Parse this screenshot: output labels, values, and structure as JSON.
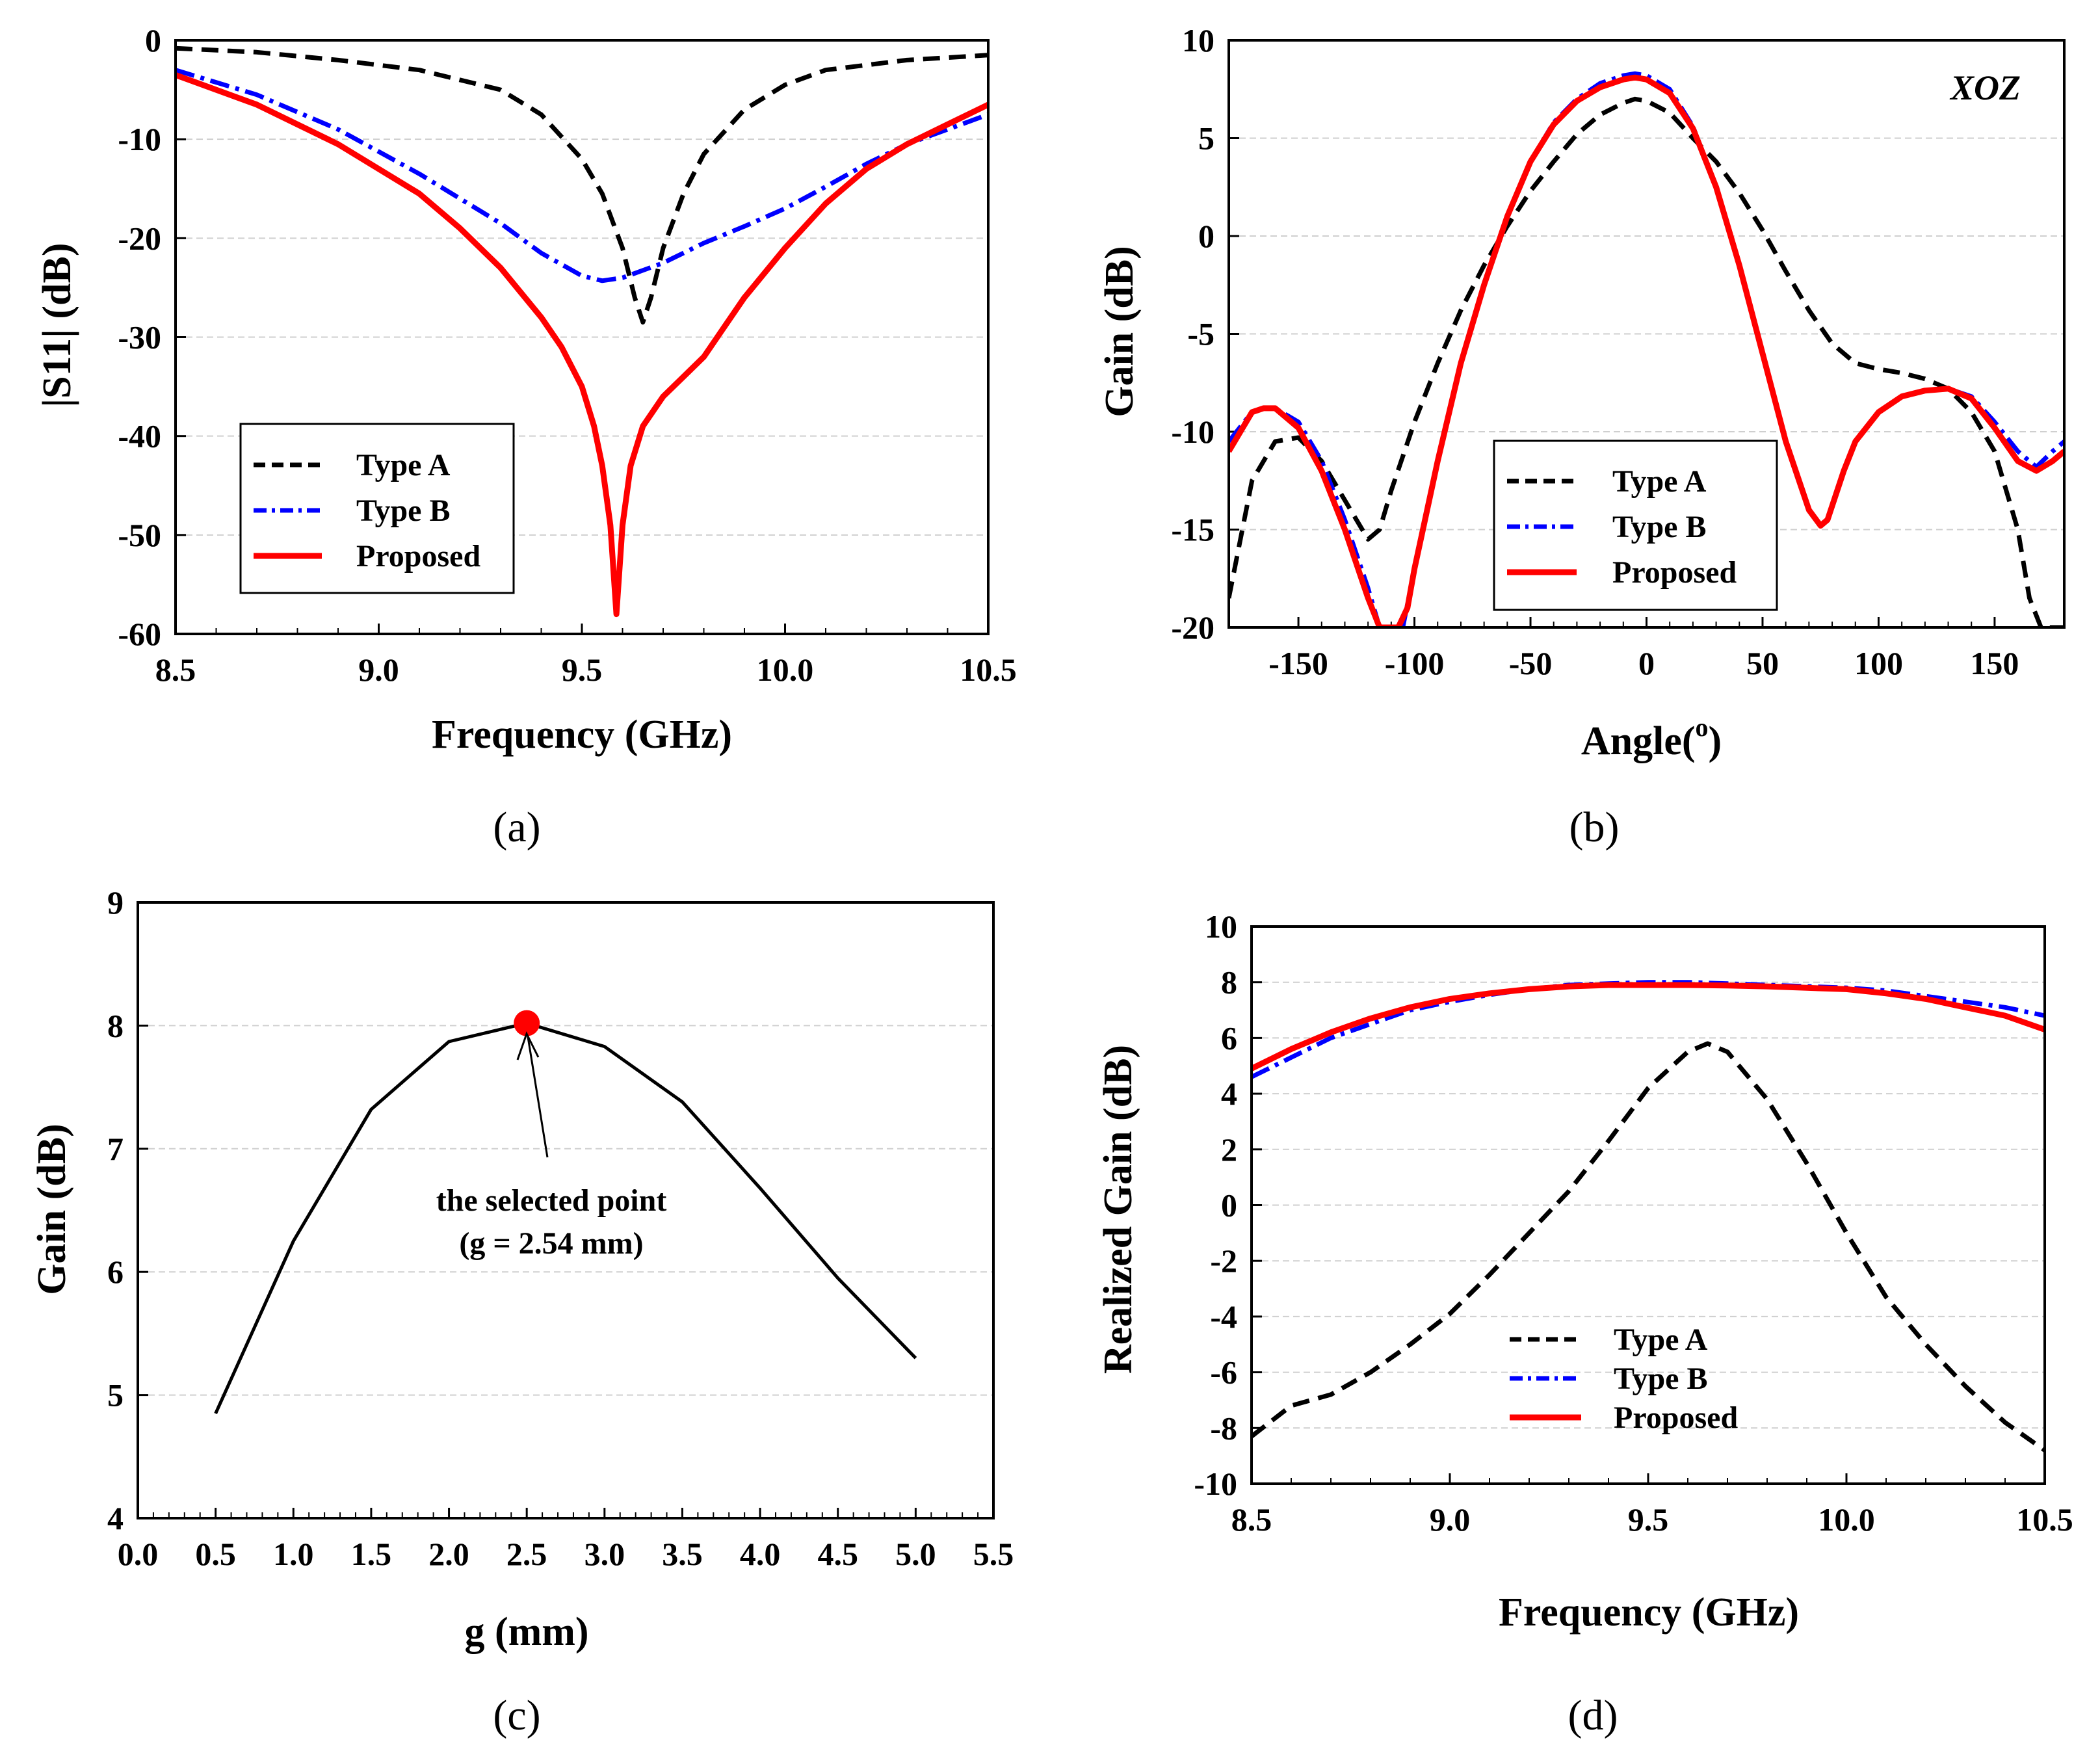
{
  "chart_data": [
    {
      "type": "line",
      "panel_label": "(a)",
      "xlabel": "Frequency (GHz)",
      "ylabel": "|S11| (dB)",
      "xlim": [
        8.5,
        10.5
      ],
      "ylim": [
        -60,
        0
      ],
      "xticks": [
        "8.5",
        "9.0",
        "9.5",
        "10.0",
        "10.5"
      ],
      "yticks": [
        "0",
        "-10",
        "-20",
        "-30",
        "-40",
        "-50",
        "-60"
      ],
      "grid": true,
      "legend": "bottom-left",
      "series": [
        {
          "name": "Type A",
          "color": "#000000",
          "style": "dashed",
          "x": [
            8.5,
            8.7,
            8.9,
            9.1,
            9.3,
            9.4,
            9.5,
            9.55,
            9.6,
            9.63,
            9.65,
            9.67,
            9.7,
            9.75,
            9.8,
            9.9,
            10.0,
            10.1,
            10.3,
            10.5
          ],
          "y": [
            -0.8,
            -1.2,
            -2.0,
            -3.0,
            -5.0,
            -7.5,
            -12.0,
            -15.5,
            -21.0,
            -26.0,
            -28.5,
            -26.0,
            -21.0,
            -15.5,
            -11.5,
            -7.0,
            -4.5,
            -3.0,
            -2.0,
            -1.5
          ]
        },
        {
          "name": "Type B",
          "color": "#0000ff",
          "style": "dashdot",
          "x": [
            8.5,
            8.7,
            8.9,
            9.1,
            9.3,
            9.4,
            9.5,
            9.55,
            9.6,
            9.7,
            9.8,
            9.9,
            10.0,
            10.1,
            10.2,
            10.3,
            10.4,
            10.5
          ],
          "y": [
            -3.0,
            -5.5,
            -9.0,
            -13.5,
            -18.5,
            -21.5,
            -23.8,
            -24.3,
            -24.0,
            -22.5,
            -20.5,
            -18.8,
            -17.0,
            -14.8,
            -12.5,
            -10.5,
            -9.0,
            -7.5
          ]
        },
        {
          "name": "Proposed",
          "color": "#ff0000",
          "style": "solid",
          "x": [
            8.5,
            8.7,
            8.9,
            9.1,
            9.2,
            9.3,
            9.4,
            9.45,
            9.5,
            9.53,
            9.55,
            9.57,
            9.585,
            9.6,
            9.62,
            9.65,
            9.7,
            9.75,
            9.8,
            9.85,
            9.9,
            10.0,
            10.1,
            10.2,
            10.3,
            10.4,
            10.5
          ],
          "y": [
            -3.5,
            -6.5,
            -10.5,
            -15.5,
            -19.0,
            -23.0,
            -28.0,
            -31.0,
            -35.0,
            -39.0,
            -43.0,
            -49.0,
            -58.0,
            -49.0,
            -43.0,
            -39.0,
            -36.0,
            -34.0,
            -32.0,
            -29.0,
            -26.0,
            -21.0,
            -16.5,
            -13.0,
            -10.5,
            -8.5,
            -6.5
          ]
        }
      ]
    },
    {
      "type": "line",
      "panel_label": "(b)",
      "annotation": "XOZ",
      "xlabel": "Angle(°)",
      "xlabel_main": "Angle(",
      "xlabel_sup": "o",
      "xlabel_close": ")",
      "ylabel": "Gain (dB)",
      "xlim": [
        -180,
        180
      ],
      "ylim": [
        -20,
        10
      ],
      "xticks": [
        -150,
        -100,
        -50,
        0,
        50,
        100,
        150
      ],
      "xtick_labels": [
        "-150",
        "-100",
        "-50",
        "0",
        "50",
        "100",
        "150"
      ],
      "yticks": [
        "10",
        "5",
        "0",
        "-5",
        "-10",
        "-15",
        "-20"
      ],
      "grid": true,
      "legend": "center-right",
      "series": [
        {
          "name": "Type A",
          "color": "#000000",
          "style": "dashed",
          "x": [
            -180,
            -170,
            -160,
            -150,
            -140,
            -130,
            -120,
            -115,
            -110,
            -100,
            -90,
            -80,
            -70,
            -60,
            -50,
            -40,
            -30,
            -20,
            -10,
            -5,
            0,
            10,
            20,
            30,
            40,
            50,
            60,
            70,
            80,
            90,
            100,
            110,
            120,
            130,
            140,
            150,
            160,
            165,
            170,
            175,
            180
          ],
          "y": [
            -18.5,
            -12.5,
            -10.5,
            -10.3,
            -11.5,
            -13.5,
            -15.5,
            -15.0,
            -13.0,
            -9.5,
            -6.5,
            -3.8,
            -1.5,
            0.5,
            2.3,
            3.8,
            5.2,
            6.2,
            6.8,
            7.0,
            6.9,
            6.3,
            5.0,
            3.8,
            2.2,
            0.3,
            -1.8,
            -3.8,
            -5.5,
            -6.5,
            -6.8,
            -7.0,
            -7.3,
            -7.8,
            -9.0,
            -11.0,
            -15.0,
            -18.5,
            -20.0,
            -20.0,
            -20.0
          ]
        },
        {
          "name": "Type B",
          "color": "#0000ff",
          "style": "dashdot",
          "x": [
            -180,
            -170,
            -165,
            -160,
            -150,
            -140,
            -130,
            -120,
            -115,
            -110,
            -105,
            -100,
            -90,
            -80,
            -70,
            -60,
            -50,
            -40,
            -30,
            -20,
            -10,
            -5,
            0,
            10,
            20,
            30,
            40,
            50,
            60,
            70,
            75,
            78,
            85,
            90,
            100,
            110,
            120,
            130,
            140,
            150,
            160,
            168,
            175,
            180
          ],
          "y": [
            -10.5,
            -9.0,
            -8.8,
            -8.8,
            -9.5,
            -11.5,
            -14.5,
            -18.0,
            -20.0,
            -20.0,
            -20.0,
            -17.0,
            -11.5,
            -6.5,
            -2.5,
            1.0,
            3.8,
            5.8,
            7.0,
            7.8,
            8.2,
            8.3,
            8.2,
            7.5,
            5.6,
            2.5,
            -1.5,
            -6.0,
            -10.5,
            -14.0,
            -14.8,
            -14.5,
            -12.0,
            -10.5,
            -9.0,
            -8.2,
            -7.9,
            -7.8,
            -8.2,
            -9.5,
            -11.0,
            -11.8,
            -11.0,
            -10.5
          ]
        },
        {
          "name": "Proposed",
          "color": "#ff0000",
          "style": "solid",
          "x": [
            -180,
            -170,
            -165,
            -160,
            -150,
            -140,
            -130,
            -120,
            -115,
            -110,
            -107,
            -103,
            -100,
            -90,
            -80,
            -70,
            -60,
            -50,
            -40,
            -30,
            -20,
            -10,
            -5,
            0,
            10,
            20,
            30,
            40,
            50,
            60,
            70,
            75,
            78,
            85,
            90,
            100,
            110,
            120,
            130,
            140,
            150,
            160,
            168,
            175,
            180
          ],
          "y": [
            -11.0,
            -9.0,
            -8.8,
            -8.8,
            -9.8,
            -12.0,
            -15.0,
            -18.5,
            -20.0,
            -20.0,
            -20.0,
            -19.0,
            -17.0,
            -11.5,
            -6.5,
            -2.5,
            1.0,
            3.8,
            5.7,
            6.9,
            7.6,
            8.0,
            8.1,
            8.0,
            7.3,
            5.5,
            2.5,
            -1.5,
            -6.0,
            -10.5,
            -14.0,
            -14.8,
            -14.5,
            -12.0,
            -10.5,
            -9.0,
            -8.2,
            -7.9,
            -7.8,
            -8.3,
            -9.8,
            -11.5,
            -12.0,
            -11.5,
            -11.0
          ]
        }
      ]
    },
    {
      "type": "line",
      "panel_label": "(c)",
      "xlabel": "g (mm)",
      "ylabel": "Gain (dB)",
      "xlim": [
        0.0,
        5.5
      ],
      "ylim": [
        4,
        9
      ],
      "xticks": [
        "0.0",
        "0.5",
        "1.0",
        "1.5",
        "2.0",
        "2.5",
        "3.0",
        "3.5",
        "4.0",
        "4.5",
        "5.0",
        "5.5"
      ],
      "yticks": [
        "9",
        "8",
        "7",
        "6",
        "5",
        "4"
      ],
      "grid": true,
      "series": [
        {
          "name": "Gain",
          "color": "#000000",
          "style": "solid",
          "x": [
            0.5,
            1.0,
            1.5,
            2.0,
            2.5,
            3.0,
            3.5,
            4.0,
            4.5,
            5.0
          ],
          "y": [
            4.85,
            6.25,
            7.32,
            7.87,
            8.02,
            7.83,
            7.38,
            6.68,
            5.95,
            5.3
          ]
        }
      ],
      "highlight": {
        "x": 2.5,
        "y": 8.02,
        "color": "#ff0000"
      },
      "annotation_line1": "the selected point",
      "annotation_line2": "(g = 2.54 mm)"
    },
    {
      "type": "line",
      "panel_label": "(d)",
      "xlabel": "Frequency (GHz)",
      "ylabel": "Realized Gain (dB)",
      "xlim": [
        8.5,
        10.5
      ],
      "ylim": [
        -10,
        10
      ],
      "xticks": [
        "8.5",
        "9.0",
        "9.5",
        "10.0",
        "10.5"
      ],
      "yticks": [
        "10",
        "8",
        "6",
        "4",
        "2",
        "0",
        "-2",
        "-4",
        "-6",
        "-8",
        "-10"
      ],
      "grid": true,
      "legend": "bottom-center",
      "series": [
        {
          "name": "Type A",
          "color": "#000000",
          "style": "dashed",
          "x": [
            8.5,
            8.6,
            8.7,
            8.8,
            8.9,
            9.0,
            9.1,
            9.2,
            9.3,
            9.4,
            9.5,
            9.6,
            9.65,
            9.7,
            9.8,
            9.9,
            10.0,
            10.1,
            10.2,
            10.3,
            10.4,
            10.5
          ],
          "y": [
            -8.3,
            -7.2,
            -6.8,
            -6.0,
            -5.0,
            -3.9,
            -2.5,
            -1.0,
            0.5,
            2.3,
            4.2,
            5.5,
            5.8,
            5.5,
            3.8,
            1.5,
            -1.0,
            -3.3,
            -5.0,
            -6.5,
            -7.8,
            -8.8
          ]
        },
        {
          "name": "Type B",
          "color": "#0000ff",
          "style": "dashdot",
          "x": [
            8.5,
            8.6,
            8.7,
            8.8,
            8.9,
            9.0,
            9.1,
            9.2,
            9.3,
            9.4,
            9.5,
            9.6,
            9.7,
            9.8,
            9.9,
            10.0,
            10.1,
            10.2,
            10.3,
            10.4,
            10.5
          ],
          "y": [
            4.6,
            5.3,
            6.0,
            6.5,
            7.0,
            7.3,
            7.55,
            7.75,
            7.9,
            7.95,
            8.0,
            8.0,
            7.95,
            7.9,
            7.85,
            7.8,
            7.7,
            7.5,
            7.3,
            7.1,
            6.8
          ]
        },
        {
          "name": "Proposed",
          "color": "#ff0000",
          "style": "solid",
          "x": [
            8.5,
            8.6,
            8.7,
            8.8,
            8.9,
            9.0,
            9.1,
            9.2,
            9.3,
            9.4,
            9.5,
            9.6,
            9.7,
            9.8,
            9.9,
            10.0,
            10.1,
            10.2,
            10.3,
            10.4,
            10.5
          ],
          "y": [
            4.9,
            5.6,
            6.2,
            6.7,
            7.1,
            7.4,
            7.6,
            7.75,
            7.85,
            7.9,
            7.9,
            7.9,
            7.88,
            7.85,
            7.8,
            7.75,
            7.6,
            7.4,
            7.1,
            6.8,
            6.3
          ]
        }
      ]
    }
  ]
}
